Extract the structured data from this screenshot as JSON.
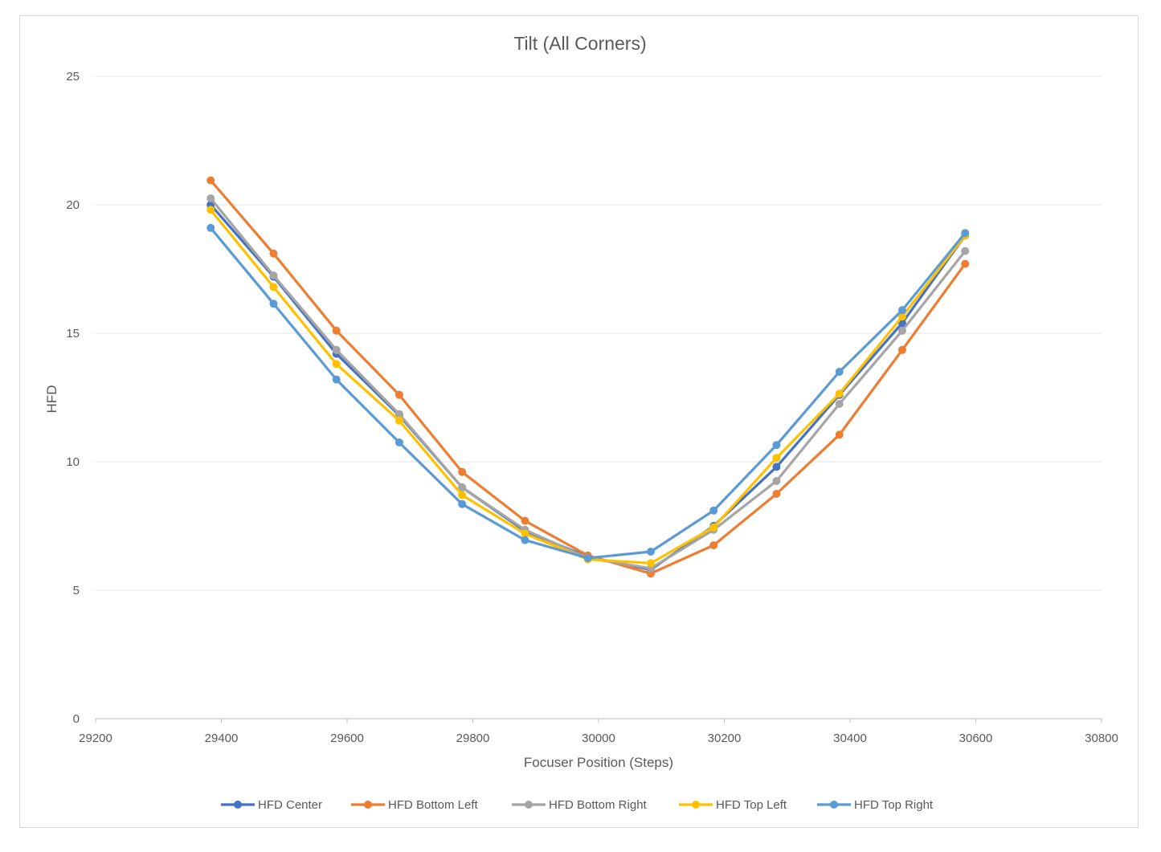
{
  "chart_data": {
    "type": "line",
    "title": "Tilt (All Corners)",
    "xlabel": "Focuser Position (Steps)",
    "ylabel": "HFD",
    "xlim": [
      29200,
      30800
    ],
    "ylim": [
      0,
      25
    ],
    "x_ticks": [
      29200,
      29400,
      29600,
      29800,
      30000,
      30200,
      30400,
      30600,
      30800
    ],
    "y_ticks": [
      0,
      5,
      10,
      15,
      20,
      25
    ],
    "grid": "horizontal",
    "legend_position": "bottom",
    "x": [
      29383,
      29483,
      29583,
      29683,
      29783,
      29883,
      29983,
      30083,
      30183,
      30283,
      30383,
      30483,
      30583
    ],
    "series": [
      {
        "name": "HFD Center",
        "color": "#4472c4",
        "values": [
          20.0,
          17.2,
          14.2,
          11.8,
          9.0,
          7.3,
          6.3,
          5.8,
          7.5,
          9.8,
          12.6,
          15.4,
          18.8
        ]
      },
      {
        "name": "HFD Bottom Left",
        "color": "#ed7d31",
        "values": [
          20.95,
          18.1,
          15.1,
          12.6,
          9.6,
          7.7,
          6.35,
          5.65,
          6.75,
          8.75,
          11.05,
          14.35,
          17.7
        ]
      },
      {
        "name": "HFD Bottom Right",
        "color": "#a5a5a5",
        "values": [
          20.25,
          17.25,
          14.35,
          11.85,
          9.0,
          7.35,
          6.25,
          5.85,
          7.35,
          9.25,
          12.25,
          15.1,
          18.2
        ]
      },
      {
        "name": "HFD Top Left",
        "color": "#ffc000",
        "values": [
          19.8,
          16.8,
          13.8,
          11.6,
          8.7,
          7.2,
          6.2,
          6.05,
          7.45,
          10.15,
          12.65,
          15.65,
          18.8
        ]
      },
      {
        "name": "HFD Top Right",
        "color": "#5b9bd5",
        "values": [
          19.1,
          16.15,
          13.2,
          10.75,
          8.35,
          6.95,
          6.25,
          6.5,
          8.1,
          10.65,
          13.5,
          15.9,
          18.9
        ]
      }
    ]
  }
}
